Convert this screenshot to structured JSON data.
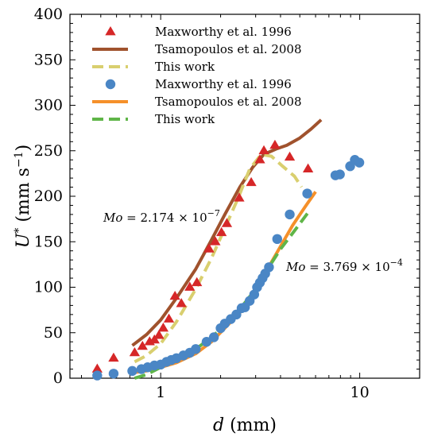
{
  "chart_data": {
    "type": "scatter",
    "title": "",
    "xlabel": "d (mm)",
    "ylabel": "U* (mm s⁻¹)",
    "xscale": "log",
    "xlim": [
      0.35,
      20
    ],
    "ylim": [
      0,
      400
    ],
    "yticks": [
      0,
      50,
      100,
      150,
      200,
      250,
      300,
      350,
      400
    ],
    "xticks": [
      1,
      10
    ],
    "xtick_labels": [
      "1",
      "10"
    ],
    "grid": false,
    "legend_position": "top-left",
    "annotations": [
      {
        "text": "Mo = 2.174 × 10⁻⁷",
        "x": 0.97,
        "y": 175
      },
      {
        "text": "Mo = 3.769 × 10⁻⁴",
        "x": 9.0,
        "y": 125
      }
    ],
    "series": [
      {
        "name": "Maxworthy et al. 1996",
        "kind": "marker-triangle",
        "color": "#d62728",
        "x": [
          0.48,
          0.58,
          0.74,
          0.81,
          0.88,
          0.93,
          0.98,
          1.03,
          1.1,
          1.18,
          1.27,
          1.4,
          1.52,
          1.75,
          1.88,
          2.02,
          2.15,
          2.48,
          2.85,
          3.15,
          3.3,
          3.75,
          4.45,
          5.5
        ],
        "y": [
          10,
          22,
          28,
          35,
          40,
          42,
          47,
          55,
          65,
          90,
          82,
          100,
          105,
          142,
          150,
          160,
          170,
          198,
          215,
          240,
          250,
          256,
          243,
          230
        ]
      },
      {
        "name": "Tsamopoulos et al. 2008",
        "kind": "line",
        "color": "#a0522d",
        "x": [
          0.72,
          0.85,
          1.0,
          1.2,
          1.5,
          1.8,
          2.1,
          2.5,
          2.9,
          3.3,
          3.8,
          4.3,
          5.0,
          5.7,
          6.4
        ],
        "y": [
          36,
          48,
          64,
          88,
          120,
          152,
          180,
          210,
          232,
          246,
          252,
          256,
          264,
          274,
          284
        ]
      },
      {
        "name": "This work",
        "kind": "dashed",
        "color": "#d9cf6f",
        "x": [
          0.74,
          0.85,
          1.0,
          1.2,
          1.5,
          1.8,
          2.1,
          2.45,
          2.8,
          3.2,
          3.6,
          4.1,
          4.7,
          5.1
        ],
        "y": [
          18,
          25,
          38,
          62,
          98,
          132,
          165,
          198,
          230,
          246,
          244,
          233,
          222,
          210
        ]
      },
      {
        "name": "Maxworthy et al. 1996",
        "kind": "marker-circle",
        "color": "#4a86c5",
        "x": [
          0.48,
          0.58,
          0.72,
          0.8,
          0.86,
          0.93,
          1.0,
          1.07,
          1.13,
          1.2,
          1.3,
          1.4,
          1.5,
          1.7,
          1.85,
          2.0,
          2.1,
          2.25,
          2.4,
          2.55,
          2.65,
          2.8,
          2.95,
          3.05,
          3.15,
          3.25,
          3.35,
          3.5,
          3.85,
          4.45,
          5.45,
          7.55,
          7.95,
          8.95,
          9.45,
          9.95
        ],
        "y": [
          3,
          5,
          8,
          10,
          12,
          14,
          15,
          18,
          20,
          22,
          25,
          28,
          32,
          40,
          45,
          55,
          60,
          65,
          70,
          77,
          78,
          85,
          92,
          100,
          105,
          110,
          115,
          122,
          153,
          180,
          203,
          223,
          224,
          233,
          240,
          237
        ]
      },
      {
        "name": "Tsamopoulos et al. 2008",
        "kind": "line",
        "color": "#f5902a",
        "x": [
          0.72,
          0.85,
          1.0,
          1.2,
          1.5,
          1.8,
          2.1,
          2.5,
          2.9,
          3.4,
          4.0,
          4.6,
          5.3,
          6.0
        ],
        "y": [
          6,
          8,
          12,
          17,
          27,
          40,
          55,
          72,
          92,
          118,
          145,
          168,
          188,
          205
        ]
      },
      {
        "name": "This work",
        "kind": "dashed",
        "color": "#5fb548",
        "x": [
          0.74,
          0.85,
          1.0,
          1.2,
          1.5,
          1.8,
          2.1,
          2.5,
          2.9,
          3.4,
          4.0,
          4.7,
          5.5
        ],
        "y": [
          0,
          4,
          12,
          22,
          32,
          45,
          58,
          76,
          94,
          118,
          142,
          162,
          182
        ]
      }
    ]
  }
}
